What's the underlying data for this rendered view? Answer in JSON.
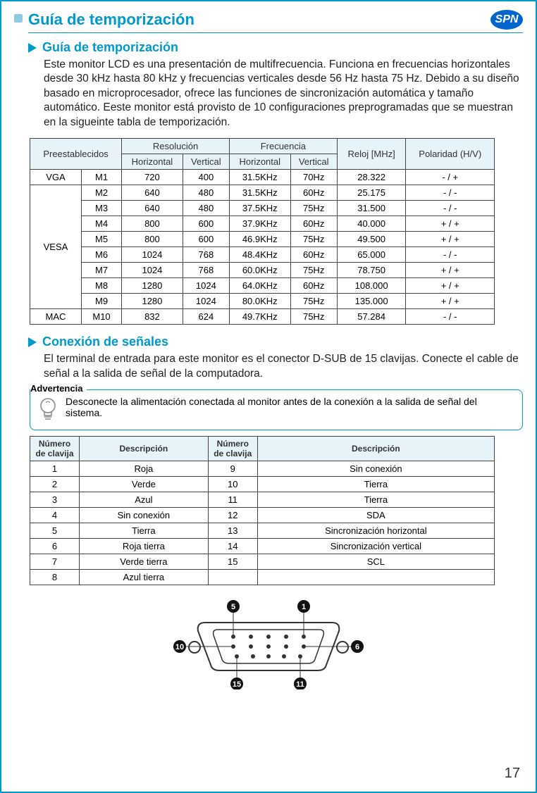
{
  "header": {
    "title": "Guía de temporización",
    "badge": "SPN"
  },
  "section1": {
    "title": "Guía de temporización",
    "body": "Este monitor LCD es una presentación de multifrecuencia. Funciona en frecuencias horizontales desde 30 kHz hasta 80 kHz y frecuencias verticales desde 56 Hz hasta 75 Hz. Debido a su diseño basado en microprocesador, ofrece las funciones de sincronización automática y tamaño automático. Eeste monitor está provisto de 10 configuraciones preprogramadas que se muestran en la sigueinte tabla de temporización."
  },
  "timing_table": {
    "headers": {
      "presets": "Preestablecidos",
      "resolution": "Resolución",
      "frequency": "Frecuencia",
      "clock": "Reloj [MHz]",
      "polarity": "Polaridad (H/V)",
      "horizontal": "Horizontal",
      "vertical": "Vertical"
    },
    "groups": [
      "VGA",
      "VESA",
      "MAC"
    ],
    "rows": [
      {
        "g": "VGA",
        "mode": "M1",
        "rh": "720",
        "rv": "400",
        "fh": "31.5KHz",
        "fv": "70Hz",
        "clk": "28.322",
        "pol": "- / +"
      },
      {
        "g": "VESA",
        "mode": "M2",
        "rh": "640",
        "rv": "480",
        "fh": "31.5KHz",
        "fv": "60Hz",
        "clk": "25.175",
        "pol": "- / -"
      },
      {
        "g": "VESA",
        "mode": "M3",
        "rh": "640",
        "rv": "480",
        "fh": "37.5KHz",
        "fv": "75Hz",
        "clk": "31.500",
        "pol": "- / -"
      },
      {
        "g": "VESA",
        "mode": "M4",
        "rh": "800",
        "rv": "600",
        "fh": "37.9KHz",
        "fv": "60Hz",
        "clk": "40.000",
        "pol": "+ / +"
      },
      {
        "g": "VESA",
        "mode": "M5",
        "rh": "800",
        "rv": "600",
        "fh": "46.9KHz",
        "fv": "75Hz",
        "clk": "49.500",
        "pol": "+ / +"
      },
      {
        "g": "VESA",
        "mode": "M6",
        "rh": "1024",
        "rv": "768",
        "fh": "48.4KHz",
        "fv": "60Hz",
        "clk": "65.000",
        "pol": "- / -"
      },
      {
        "g": "VESA",
        "mode": "M7",
        "rh": "1024",
        "rv": "768",
        "fh": "60.0KHz",
        "fv": "75Hz",
        "clk": "78.750",
        "pol": "+ / +"
      },
      {
        "g": "VESA",
        "mode": "M8",
        "rh": "1280",
        "rv": "1024",
        "fh": "64.0KHz",
        "fv": "60Hz",
        "clk": "108.000",
        "pol": "+ / +"
      },
      {
        "g": "VESA",
        "mode": "M9",
        "rh": "1280",
        "rv": "1024",
        "fh": "80.0KHz",
        "fv": "75Hz",
        "clk": "135.000",
        "pol": "+ / +"
      },
      {
        "g": "MAC",
        "mode": "M10",
        "rh": "832",
        "rv": "624",
        "fh": "49.7KHz",
        "fv": "75Hz",
        "clk": "57.284",
        "pol": "- / -"
      }
    ]
  },
  "section2": {
    "title": "Conexión de señales",
    "body": "El terminal de entrada para este monitor es el conector D-SUB de 15 clavijas. Conecte el cable de señal a la salida de señal de la computadora."
  },
  "warning": {
    "label": "Advertencia",
    "text": "Desconecte la alimentación conectada al monitor antes de la conexión a la salida de señal del sistema."
  },
  "pin_table": {
    "headers": {
      "num": "Número de clavija",
      "desc": "Descripción"
    },
    "left": [
      {
        "n": "1",
        "d": "Roja"
      },
      {
        "n": "2",
        "d": "Verde"
      },
      {
        "n": "3",
        "d": "Azul"
      },
      {
        "n": "4",
        "d": "Sin conexión"
      },
      {
        "n": "5",
        "d": "Tierra"
      },
      {
        "n": "6",
        "d": "Roja tierra"
      },
      {
        "n": "7",
        "d": "Verde tierra"
      },
      {
        "n": "8",
        "d": "Azul tierra"
      }
    ],
    "right": [
      {
        "n": "9",
        "d": "Sin conexión"
      },
      {
        "n": "10",
        "d": "Tierra"
      },
      {
        "n": "11",
        "d": "Tierra"
      },
      {
        "n": "12",
        "d": "SDA"
      },
      {
        "n": "13",
        "d": "Sincronización horizontal"
      },
      {
        "n": "14",
        "d": "Sincronización vertical"
      },
      {
        "n": "15",
        "d": "SCL"
      },
      {
        "n": "",
        "d": ""
      }
    ]
  },
  "connector_labels": {
    "a": "5",
    "b": "1",
    "c": "10",
    "d": "6",
    "e": "15",
    "f": "11"
  },
  "pagenum": "17",
  "colors": {
    "accent": "#0099cc",
    "header_bg": "#e6f3f9",
    "badge_bg": "#0066cc"
  }
}
